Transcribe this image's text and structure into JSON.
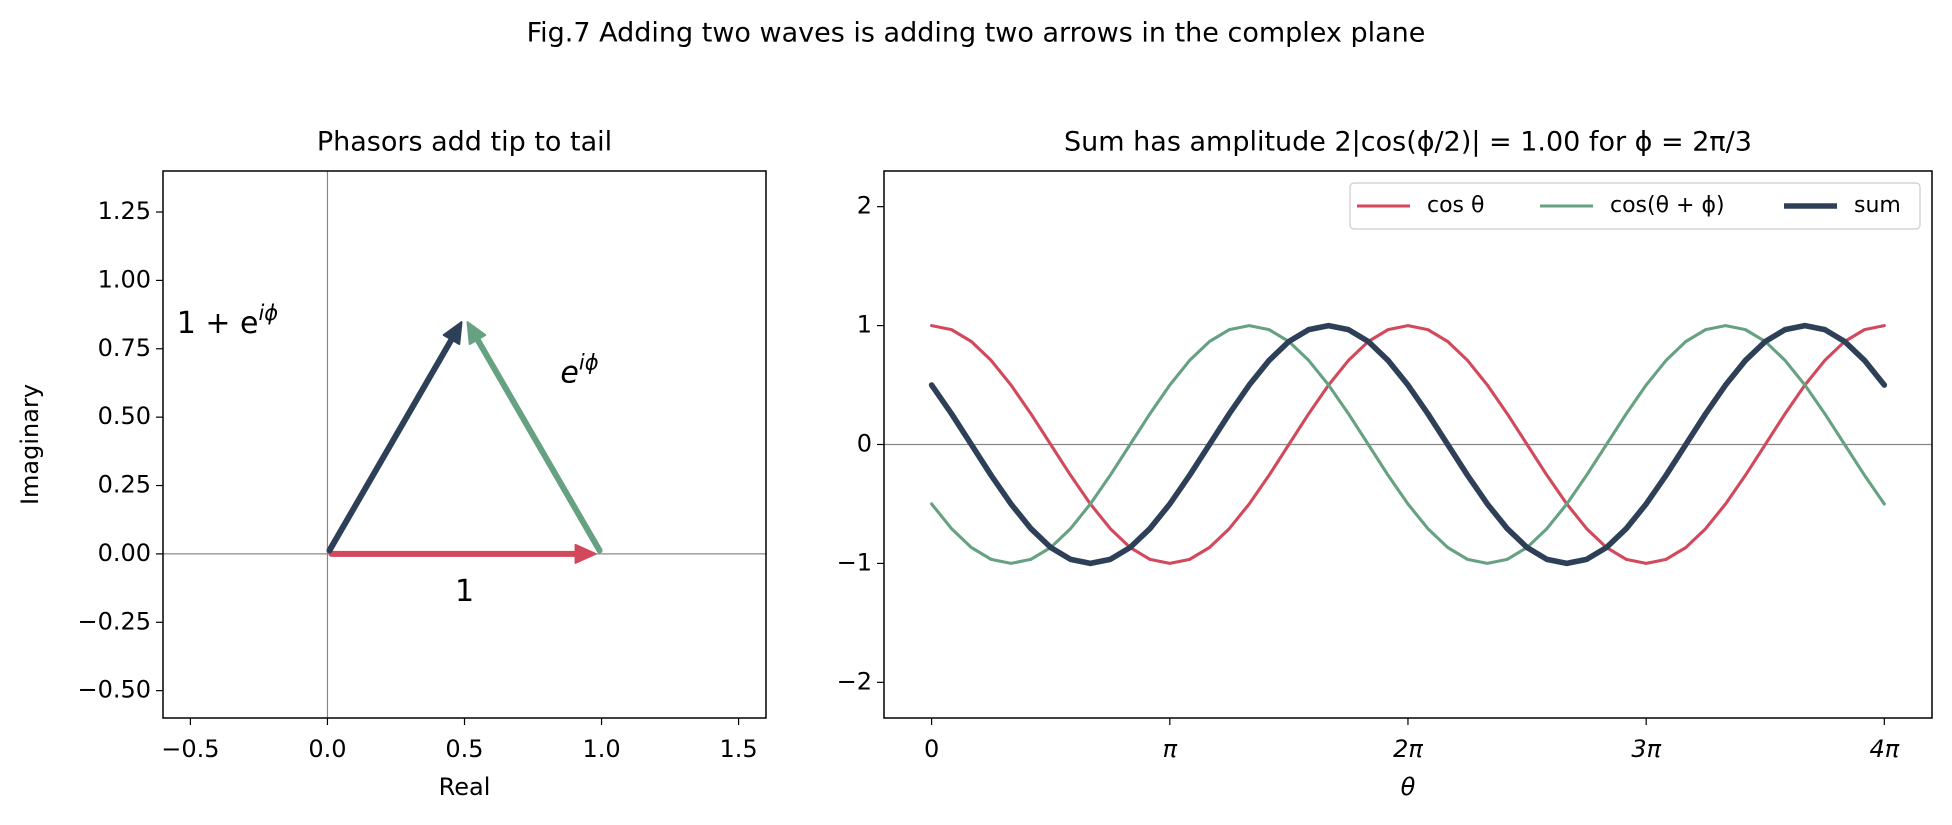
{
  "figure_title": "Fig.7 Adding two waves is adding two arrows in the complex plane",
  "chart_data": [
    {
      "type": "phasor",
      "title": "Phasors add tip to tail",
      "x_label": "Real",
      "y_label": "Imaginary",
      "xlim": [
        -0.6,
        1.6
      ],
      "ylim": [
        -0.6,
        1.4
      ],
      "xticks": [
        {
          "value": -0.5,
          "label": "−0.5"
        },
        {
          "value": 0,
          "label": "0.0"
        },
        {
          "value": 0.5,
          "label": "0.5"
        },
        {
          "value": 1,
          "label": "1.0"
        },
        {
          "value": 1.5,
          "label": "1.5"
        }
      ],
      "yticks": [
        {
          "value": -0.5,
          "label": "−0.50"
        },
        {
          "value": -0.25,
          "label": "−0.25"
        },
        {
          "value": 0,
          "label": "0.00"
        },
        {
          "value": 0.25,
          "label": "0.25"
        },
        {
          "value": 0.5,
          "label": "0.50"
        },
        {
          "value": 0.75,
          "label": "0.75"
        },
        {
          "value": 1,
          "label": "1.00"
        },
        {
          "value": 1.25,
          "label": "1.25"
        }
      ],
      "arrows": [
        {
          "label": "1",
          "color": "#d1495b",
          "start": [
            0,
            0
          ],
          "end": [
            1,
            0
          ]
        },
        {
          "label": "e",
          "label_sup": "iϕ",
          "color": "#66a182",
          "start": [
            1,
            0
          ],
          "end": [
            0.5,
            0.866
          ]
        },
        {
          "label": "1 + e",
          "label_sup": "iϕ",
          "color": "#2e4057",
          "start": [
            0,
            0
          ],
          "end": [
            0.5,
            0.866
          ]
        }
      ]
    },
    {
      "type": "line",
      "title": "Sum has amplitude 2|cos(ϕ/2)| = 1.00 for ϕ = 2π/3",
      "x_label": "θ",
      "xlim": [
        -0.628,
        13.195
      ],
      "ylim": [
        -2.3,
        2.3
      ],
      "xticks": [
        0,
        {
          "value": 3.142,
          "label": "π"
        },
        {
          "value": 6.283,
          "label": "2π"
        },
        {
          "value": 9.425,
          "label": "3π"
        },
        {
          "value": 12.566,
          "label": "4π"
        }
      ],
      "yticks": [
        {
          "value": -2,
          "label": "−2"
        },
        {
          "value": -1,
          "label": "−1"
        },
        0,
        1,
        2
      ],
      "legend": "upper right",
      "x": [
        0,
        0.262,
        0.524,
        0.785,
        1.047,
        1.309,
        1.571,
        1.833,
        2.094,
        2.356,
        2.618,
        2.88,
        3.142,
        3.403,
        3.665,
        3.927,
        4.189,
        4.451,
        4.712,
        4.974,
        5.236,
        5.498,
        5.76,
        6.021,
        6.283,
        6.545,
        6.807,
        7.069,
        7.33,
        7.592,
        7.854,
        8.116,
        8.378,
        8.639,
        8.901,
        9.163,
        9.425,
        9.687,
        9.948,
        10.21,
        10.472,
        10.734,
        10.996,
        11.257,
        11.519,
        11.781,
        12.043,
        12.305,
        12.566
      ],
      "series": [
        {
          "name": "cos θ",
          "color": "#d1495b",
          "width": 2.5,
          "values": [
            1,
            0.966,
            0.866,
            0.707,
            0.5,
            0.259,
            0,
            -0.259,
            -0.5,
            -0.707,
            -0.866,
            -0.966,
            -1,
            -0.966,
            -0.866,
            -0.707,
            -0.5,
            -0.259,
            0,
            0.259,
            0.5,
            0.707,
            0.866,
            0.966,
            1,
            0.966,
            0.866,
            0.707,
            0.5,
            0.259,
            0,
            -0.259,
            -0.5,
            -0.707,
            -0.866,
            -0.966,
            -1,
            -0.966,
            -0.866,
            -0.707,
            -0.5,
            -0.259,
            0,
            0.259,
            0.5,
            0.707,
            0.866,
            0.966,
            1
          ]
        },
        {
          "name": "cos(θ + ϕ)",
          "color": "#66a182",
          "width": 2.5,
          "values": [
            -0.5,
            -0.707,
            -0.866,
            -0.966,
            -1,
            -0.966,
            -0.866,
            -0.707,
            -0.5,
            -0.259,
            0,
            0.259,
            0.5,
            0.707,
            0.866,
            0.966,
            1,
            0.966,
            0.866,
            0.707,
            0.5,
            0.259,
            0,
            -0.259,
            -0.5,
            -0.707,
            -0.866,
            -0.966,
            -1,
            -0.966,
            -0.866,
            -0.707,
            -0.5,
            -0.259,
            0,
            0.259,
            0.5,
            0.707,
            0.866,
            0.966,
            1,
            0.966,
            0.866,
            0.707,
            0.5,
            0.259,
            0,
            -0.259,
            -0.5
          ]
        },
        {
          "name": "sum",
          "color": "#2e4057",
          "width": 4.5,
          "values": [
            0.5,
            0.259,
            0,
            -0.259,
            -0.5,
            -0.707,
            -0.866,
            -0.966,
            -1,
            -0.966,
            -0.866,
            -0.707,
            -0.5,
            -0.259,
            0,
            0.259,
            0.5,
            0.707,
            0.866,
            0.966,
            1,
            0.966,
            0.866,
            0.707,
            0.5,
            0.259,
            0,
            -0.259,
            -0.5,
            -0.707,
            -0.866,
            -0.966,
            -1,
            -0.966,
            -0.866,
            -0.707,
            -0.5,
            -0.259,
            0,
            0.259,
            0.5,
            0.707,
            0.866,
            0.966,
            1,
            0.966,
            0.866,
            0.707,
            0.5
          ]
        }
      ]
    }
  ]
}
